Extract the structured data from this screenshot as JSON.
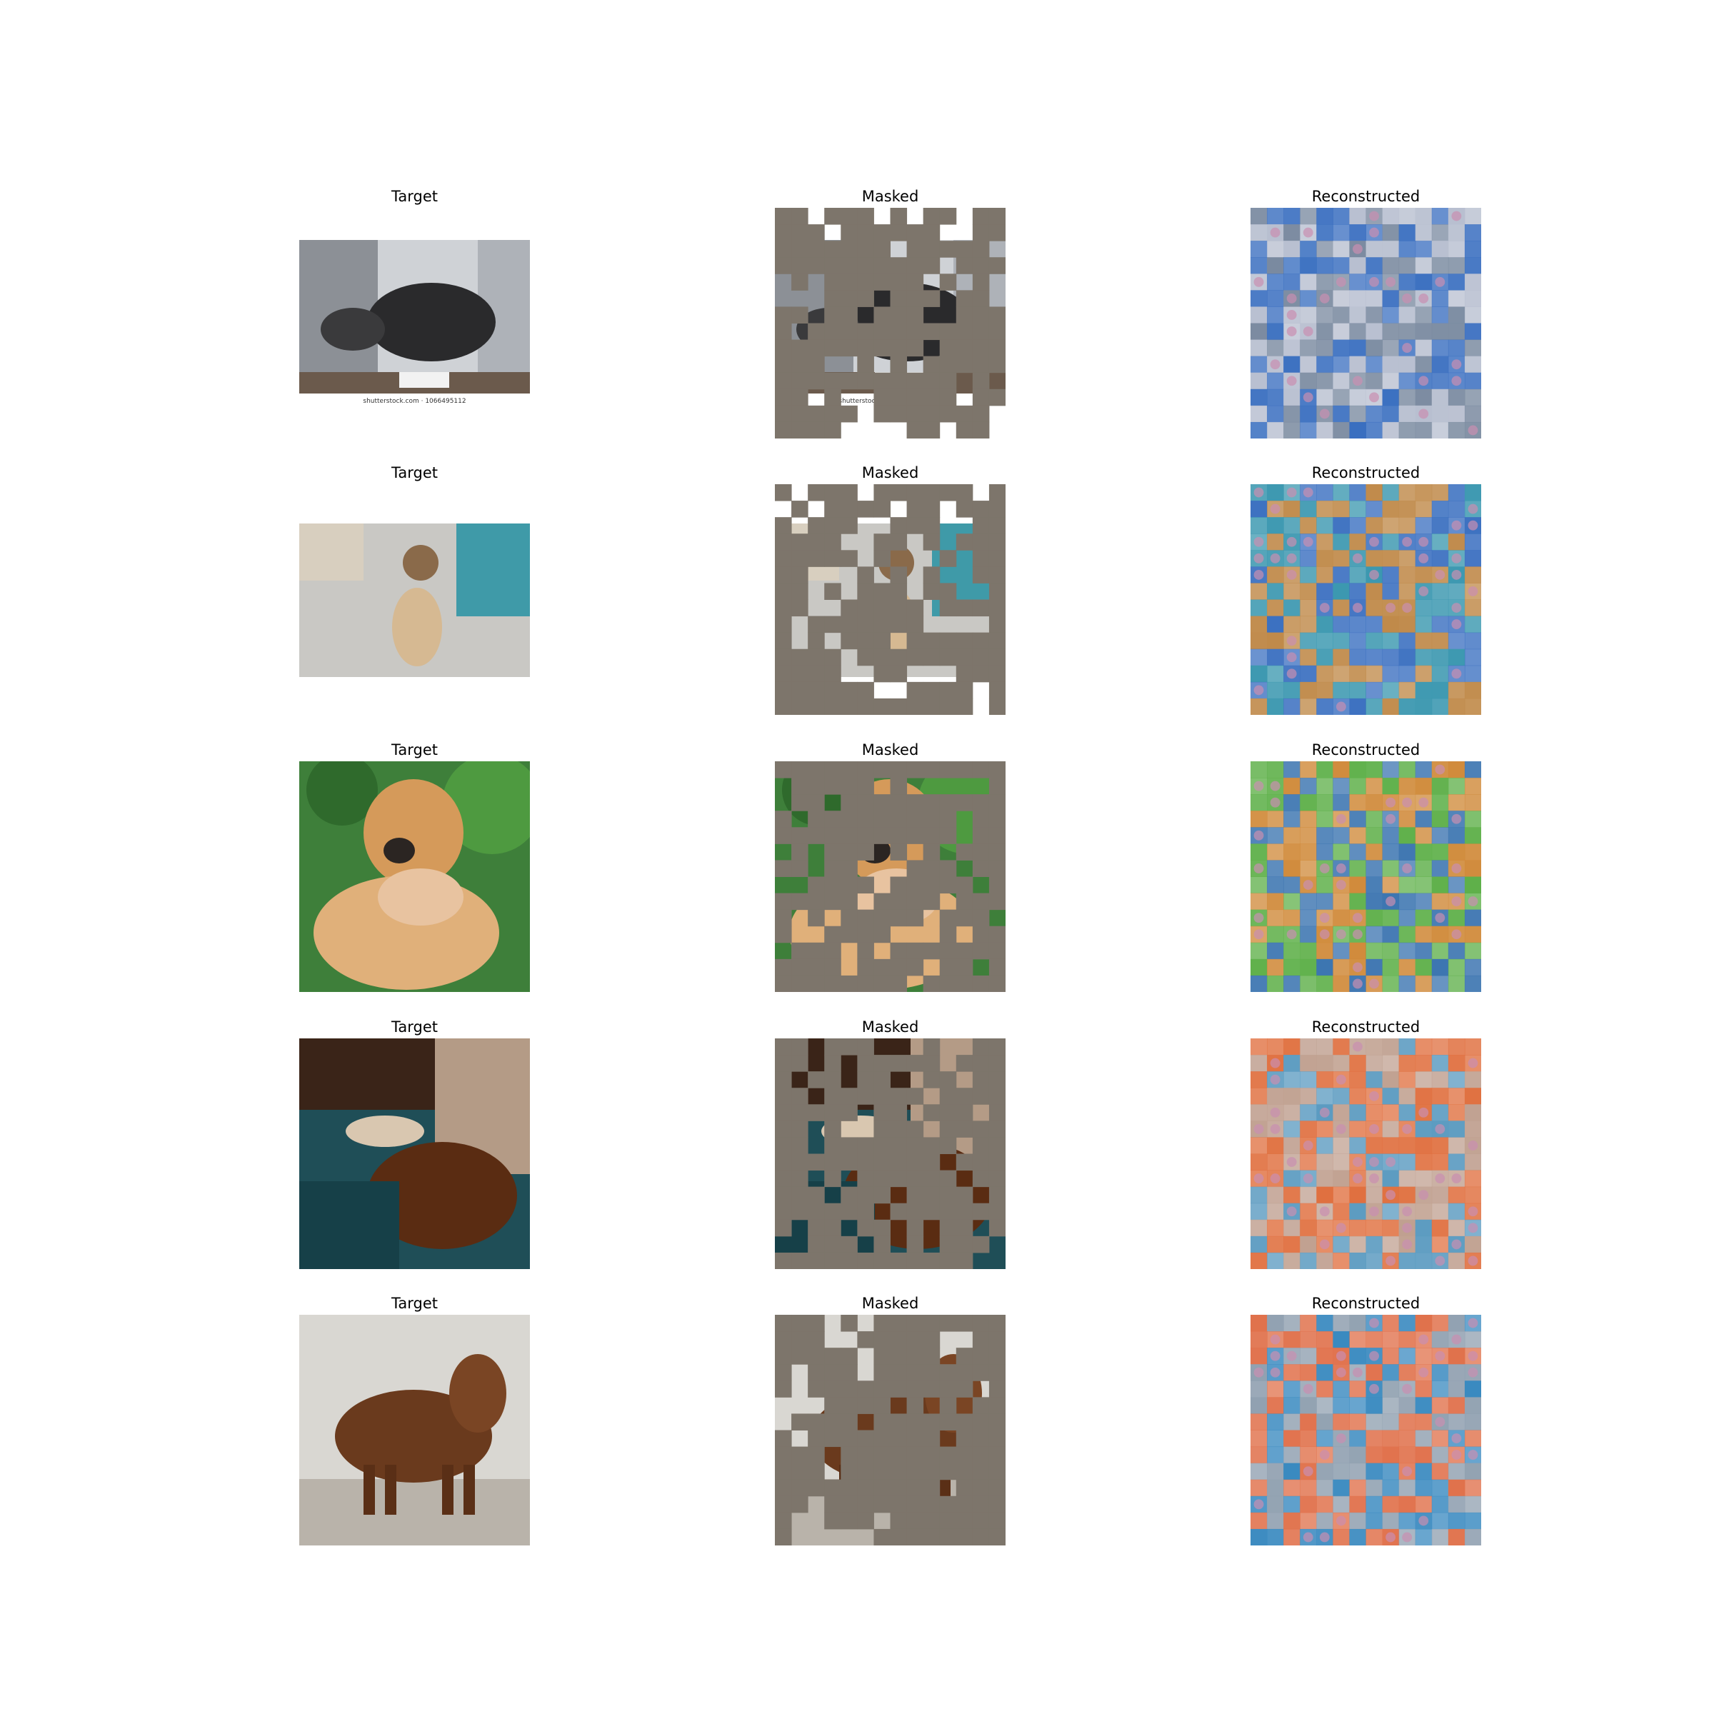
{
  "columns": [
    "Target",
    "Masked",
    "Reconstructed"
  ],
  "rows": [
    {
      "subject": "black-and-white spaniel resting head, photo with watermark",
      "watermark": "shutterstock.com · 1066495112",
      "palette": {
        "bg": "#cfd2d6",
        "main": "#2a2a2c",
        "accent": "#f2f2f2"
      }
    },
    {
      "subject": "tan mastiff puppy sitting by teal door",
      "palette": {
        "bg": "#c9c8c4",
        "main": "#d6b992",
        "accent": "#3f9aa8"
      }
    },
    {
      "subject": "brown puppy held in hands, green background",
      "palette": {
        "bg": "#3e7f3a",
        "main": "#d59a5a",
        "accent": "#e8c3a0"
      }
    },
    {
      "subject": "dog and cat lying on blanket",
      "palette": {
        "bg": "#1f4e57",
        "main": "#5a2c12",
        "accent": "#b49b86"
      }
    },
    {
      "subject": "brown long-haired spaniel standing",
      "palette": {
        "bg": "#d9d7d2",
        "main": "#6a3a1d",
        "accent": "#b9b3aa"
      }
    }
  ],
  "mask_color": "#7d756b",
  "recon_palettes": [
    [
      "#3a6fc0",
      "#7a8aa0",
      "#b8bfd0"
    ],
    [
      "#3a6fc0",
      "#3c98b0",
      "#c08a4a"
    ],
    [
      "#3b74b0",
      "#5fb04a",
      "#d08a3a"
    ],
    [
      "#5a9ac0",
      "#e07040",
      "#c0a090"
    ],
    [
      "#3a8ac0",
      "#e0704a",
      "#90a0b0"
    ]
  ]
}
